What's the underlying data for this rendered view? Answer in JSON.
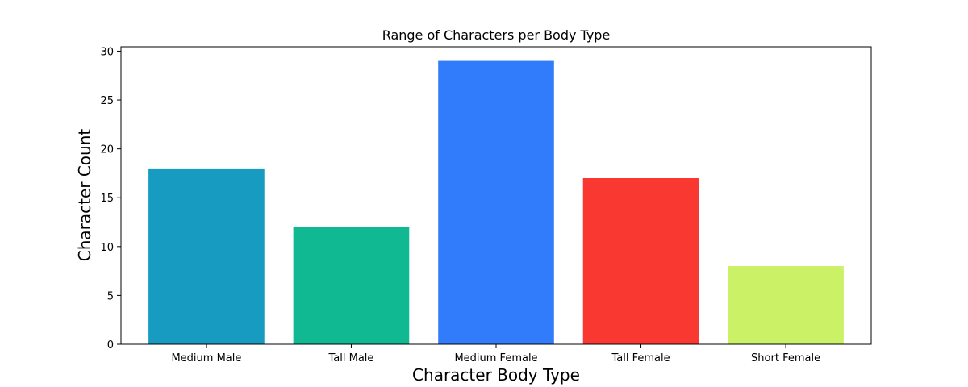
{
  "chart_data": {
    "type": "bar",
    "title": "Range of Characters per Body Type",
    "xlabel": "Character Body Type",
    "ylabel": "Character Count",
    "categories": [
      "Medium Male",
      "Tall Male",
      "Medium Female",
      "Tall Female",
      "Short Female"
    ],
    "values": [
      18,
      12,
      29,
      17,
      8
    ],
    "colors": [
      "#179bc0",
      "#10b991",
      "#317cfb",
      "#fa3832",
      "#cbf266"
    ],
    "ylim": [
      0,
      30.45
    ],
    "yticks": [
      0,
      5,
      10,
      15,
      20,
      25,
      30
    ],
    "grid": false,
    "legend": "none"
  }
}
